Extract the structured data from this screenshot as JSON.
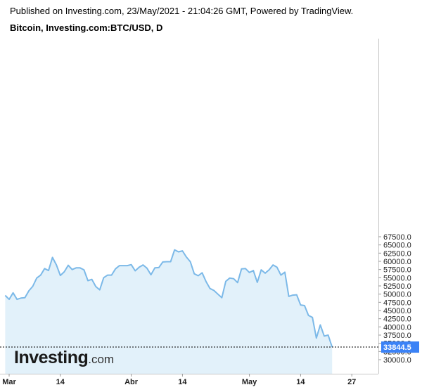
{
  "header": {
    "published": "Published on Investing.com, 23/May/2021 - 21:04:26 GMT, Powered by TradingView.",
    "title": "Bitcoin, Investing.com:BTC/USD, D"
  },
  "logo": {
    "word": "Investing",
    "suffix": ".com"
  },
  "colors": {
    "line": "#7cb9e8",
    "area": "#e2f1fa",
    "last_badge": "#3b82f6",
    "axis": "#c8c8c8"
  },
  "chart_data": {
    "type": "area",
    "title": "Bitcoin, Investing.com:BTC/USD, D",
    "x_range": [
      "2021-03-01",
      "2021-05-27"
    ],
    "ylim": [
      28500,
      69000
    ],
    "y_ticks": [
      30000,
      32500,
      35000,
      37500,
      40000,
      42500,
      45000,
      47500,
      50000,
      52500,
      55000,
      57500,
      60000,
      62500,
      65000,
      67500
    ],
    "y_tick_labels": [
      "30000.0",
      "32500.0",
      "35000.0",
      "37500.0",
      "40000.0",
      "42500.0",
      "45000.0",
      "47500.0",
      "50000.0",
      "52500.0",
      "55000.0",
      "57500.0",
      "60000.0",
      "62500.0",
      "65000.0",
      "67500.0"
    ],
    "x_ticks": [
      {
        "date": "2021-03-01",
        "label": "Mar"
      },
      {
        "date": "2021-03-14",
        "label": "14"
      },
      {
        "date": "2021-04-01",
        "label": "Abr"
      },
      {
        "date": "2021-04-14",
        "label": "14"
      },
      {
        "date": "2021-05-01",
        "label": "May"
      },
      {
        "date": "2021-05-14",
        "label": "14"
      },
      {
        "date": "2021-05-27",
        "label": "27"
      }
    ],
    "last_value": 33844.5,
    "last_label": "33844.5",
    "series": [
      {
        "start_date": "2021-02-28",
        "values": [
          49600,
          48400,
          50400,
          48400,
          48800,
          48900,
          51000,
          52400,
          54900,
          55800,
          57800,
          57200,
          61200,
          58900,
          55700,
          56800,
          58800,
          57500,
          58000,
          58000,
          57400,
          54100,
          54500,
          52300,
          51300,
          55000,
          55800,
          55800,
          57700,
          58700,
          58700,
          58700,
          59000,
          57100,
          58200,
          58900,
          57900,
          55900,
          58000,
          58100,
          59800,
          59900,
          59900,
          63500,
          62900,
          63200,
          61300,
          59900,
          56200,
          55600,
          56500,
          53800,
          51700,
          51100,
          50000,
          48900,
          53900,
          54900,
          54700,
          53500,
          57700,
          57800,
          56600,
          57200,
          53600,
          57400,
          56400,
          57400,
          58900,
          58200,
          55800,
          56700,
          49300,
          49700,
          49800,
          46700,
          46500,
          43500,
          42900,
          36600,
          40600,
          37200,
          37500,
          33844.5
        ]
      }
    ]
  }
}
